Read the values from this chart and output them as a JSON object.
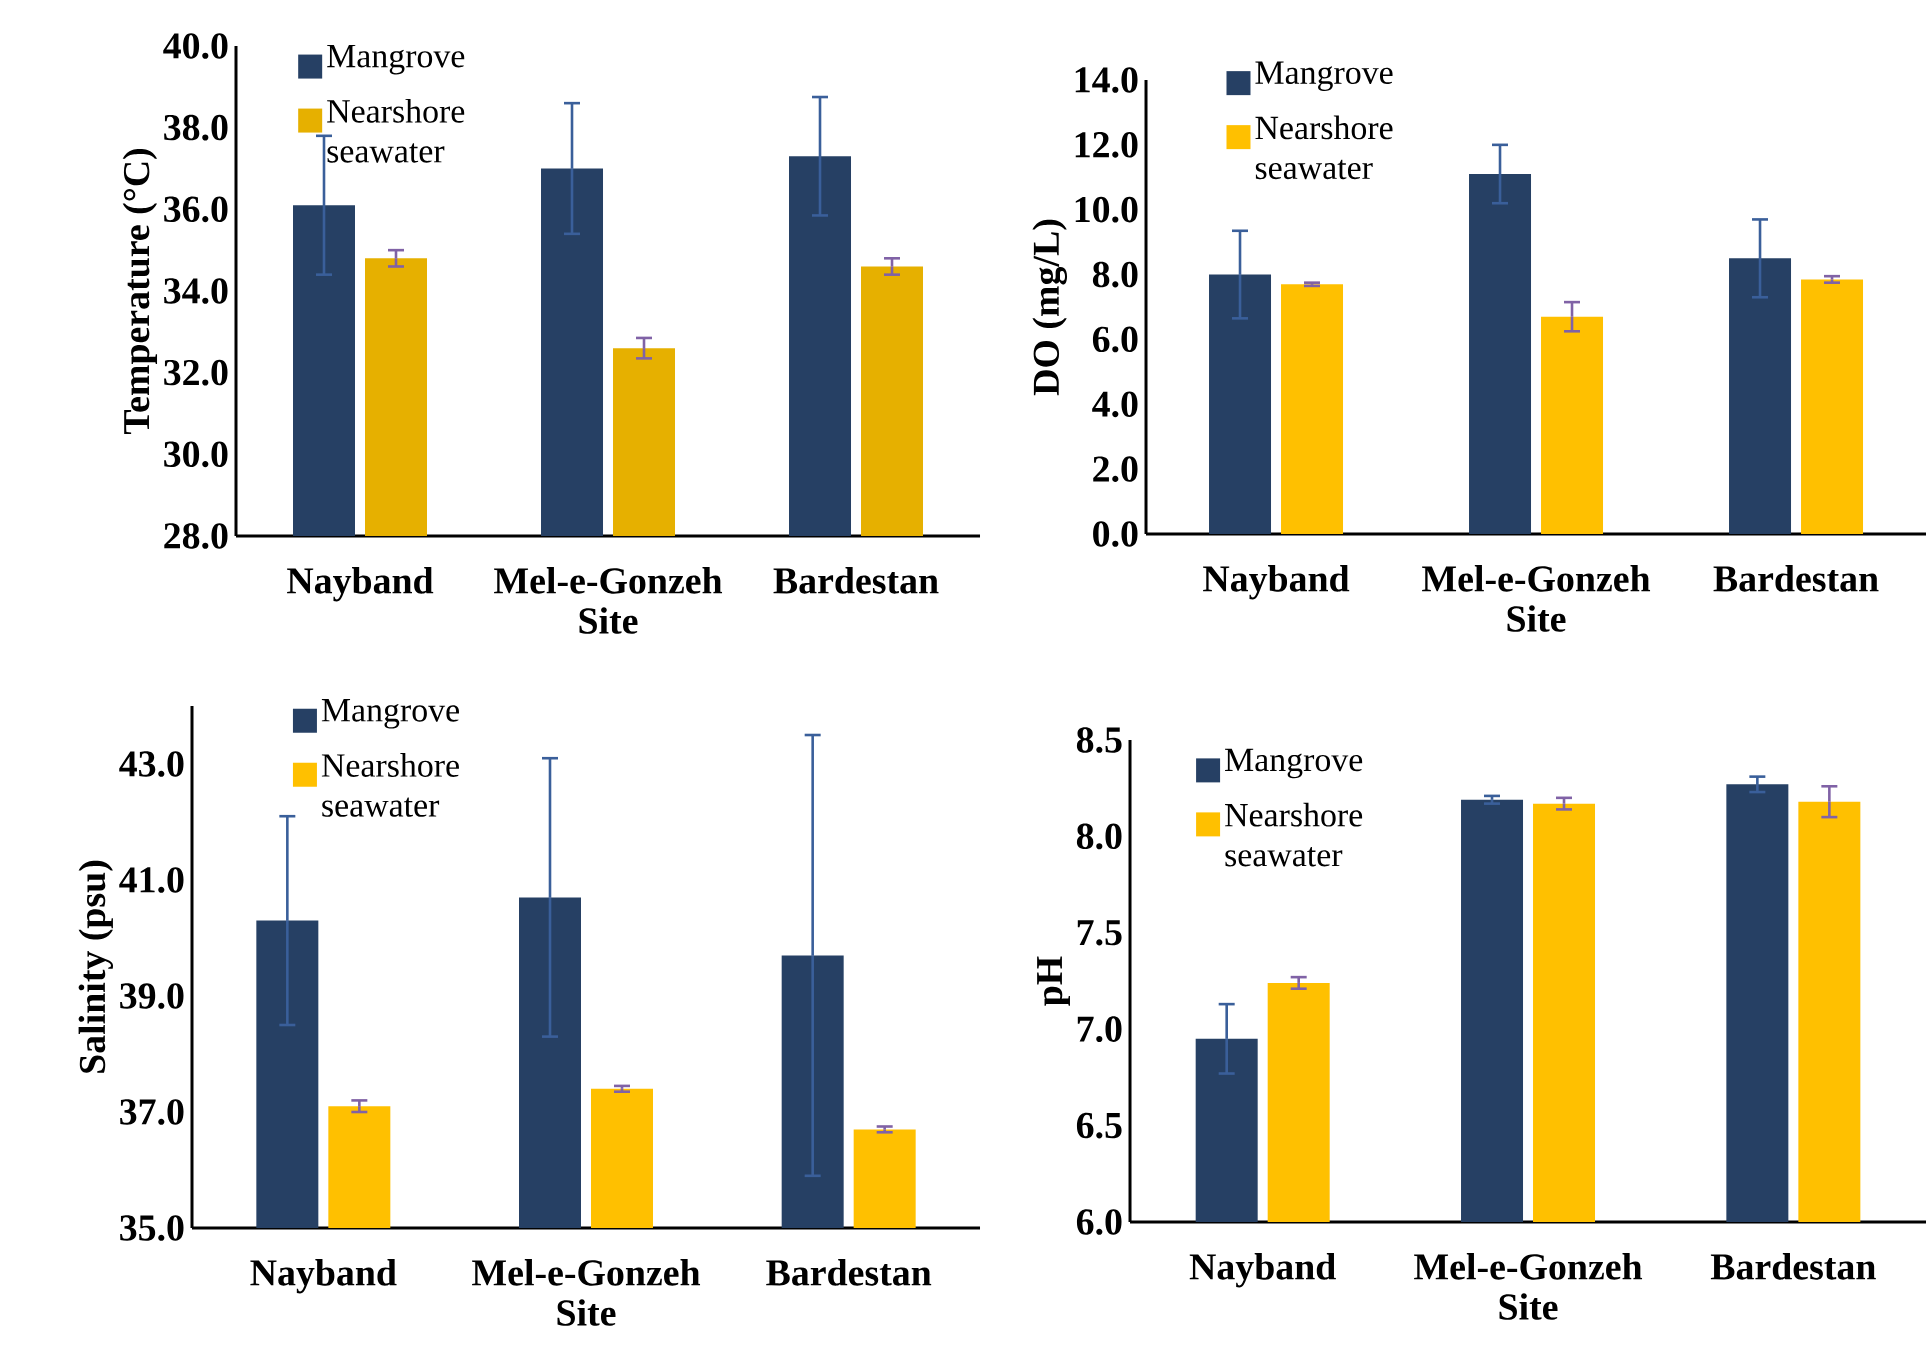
{
  "chart_data": [
    {
      "type": "bar",
      "ylabel": "Temperature (°C)",
      "xlabel": "Site",
      "categories": [
        "Nayband",
        "Mel-e-Gonzeh",
        "Bardestan"
      ],
      "ylim": [
        28,
        40
      ],
      "yticks": [
        {
          "value": 28,
          "label": "28.0"
        },
        {
          "value": 30,
          "label": "30.0"
        },
        {
          "value": 32,
          "label": "32.0"
        },
        {
          "value": 34,
          "label": "34.0"
        },
        {
          "value": 36,
          "label": "36.0"
        },
        {
          "value": 38,
          "label": "38.0"
        },
        {
          "value": 40,
          "label": "40.0"
        }
      ],
      "legend": "top left",
      "series": [
        {
          "name": "Mangrove",
          "color": "#264064",
          "values": [
            36.1,
            37.0,
            37.3
          ],
          "errors": [
            1.7,
            1.6,
            1.45
          ]
        },
        {
          "name": "Nearshore seawater",
          "color": "#e6b000",
          "values": [
            34.8,
            32.6,
            34.6
          ],
          "errors": [
            0.2,
            0.25,
            0.2
          ]
        }
      ]
    },
    {
      "type": "bar",
      "ylabel": "DO (mg/L)",
      "xlabel": "Site",
      "categories": [
        "Nayband",
        "Mel-e-Gonzeh",
        "Bardestan"
      ],
      "ylim": [
        0,
        14
      ],
      "yticks": [
        {
          "value": 0,
          "label": "0.0"
        },
        {
          "value": 2,
          "label": "2.0"
        },
        {
          "value": 4,
          "label": "4.0"
        },
        {
          "value": 6,
          "label": "6.0"
        },
        {
          "value": 8,
          "label": "8.0"
        },
        {
          "value": 10,
          "label": "10.0"
        },
        {
          "value": 12,
          "label": "12.0"
        },
        {
          "value": 14,
          "label": "14.0"
        }
      ],
      "legend": "top left",
      "series": [
        {
          "name": "Mangrove",
          "color": "#264064",
          "values": [
            8.0,
            11.1,
            8.5
          ],
          "errors": [
            1.35,
            0.9,
            1.2
          ]
        },
        {
          "name": "Nearshore seawater",
          "color": "#ffc000",
          "values": [
            7.7,
            6.7,
            7.85
          ],
          "errors": [
            0.05,
            0.45,
            0.1
          ]
        }
      ]
    },
    {
      "type": "bar",
      "ylabel": "Salinity (psu)",
      "xlabel": "Site",
      "categories": [
        "Nayband",
        "Mel-e-Gonzeh",
        "Bardestan"
      ],
      "ylim": [
        35,
        44
      ],
      "yticks": [
        {
          "value": 35,
          "label": "35.0"
        },
        {
          "value": 37,
          "label": "37.0"
        },
        {
          "value": 39,
          "label": "39.0"
        },
        {
          "value": 41,
          "label": "41.0"
        },
        {
          "value": 43,
          "label": "43.0"
        }
      ],
      "legend": "top left",
      "series": [
        {
          "name": "Mangrove",
          "color": "#264064",
          "values": [
            40.3,
            40.7,
            39.7
          ],
          "errors": [
            1.8,
            2.4,
            3.8
          ]
        },
        {
          "name": "Nearshore seawater",
          "color": "#ffc000",
          "values": [
            37.1,
            37.4,
            36.7
          ],
          "errors": [
            0.1,
            0.05,
            0.05
          ]
        }
      ]
    },
    {
      "type": "bar",
      "ylabel": "pH",
      "xlabel": "Site",
      "categories": [
        "Nayband",
        "Mel-e-Gonzeh",
        "Bardestan"
      ],
      "ylim": [
        6,
        8.5
      ],
      "yticks": [
        {
          "value": 6,
          "label": "6.0"
        },
        {
          "value": 6.5,
          "label": "6.5"
        },
        {
          "value": 7,
          "label": "7.0"
        },
        {
          "value": 7.5,
          "label": "7.5"
        },
        {
          "value": 8,
          "label": "8.0"
        },
        {
          "value": 8.5,
          "label": "8.5"
        }
      ],
      "legend": "top left",
      "series": [
        {
          "name": "Mangrove",
          "color": "#264064",
          "values": [
            6.95,
            8.19,
            8.27
          ],
          "errors": [
            0.18,
            0.02,
            0.04
          ]
        },
        {
          "name": "Nearshore seawater",
          "color": "#ffc000",
          "values": [
            7.24,
            8.17,
            8.18
          ],
          "errors": [
            0.03,
            0.03,
            0.08
          ]
        }
      ]
    }
  ]
}
